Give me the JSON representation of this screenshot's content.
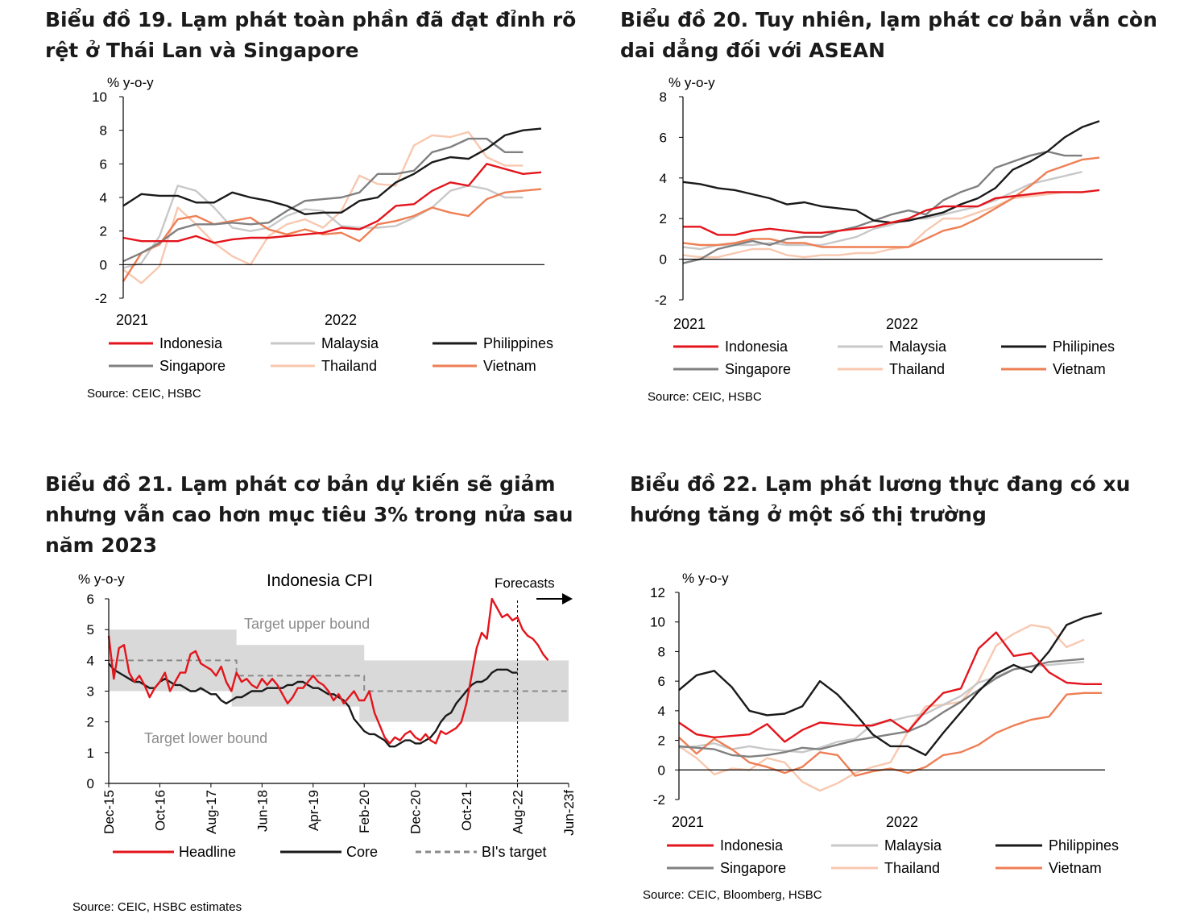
{
  "colors": {
    "indonesia": "#e3151c",
    "malaysia": "#c8c8c8",
    "philippines": "#1a1a1a",
    "singapore": "#808080",
    "thailand": "#f8c8b0",
    "vietnam": "#ee7f55",
    "band": "#d9d9d9",
    "axis": "#000000"
  },
  "chart_data": [
    {
      "type": "line",
      "title": "Biểu đồ 19. Lạm phát toàn phần đã đạt đỉnh rõ rệt ở Thái Lan và Singapore",
      "unit": "% y-o-y",
      "ylim": [
        -2,
        10
      ],
      "yticks": [
        "10",
        "8",
        "6",
        "4",
        "2",
        "0",
        "-2"
      ],
      "xlabels": [
        "2021",
        "2022"
      ],
      "source": "Source: CEIC, HSBC",
      "legend": [
        "Indonesia",
        "Malaysia",
        "Philippines",
        "Singapore",
        "Thailand",
        "Vietnam"
      ],
      "series": [
        {
          "name": "Indonesia",
          "key": "indonesia",
          "values": [
            1.6,
            1.4,
            1.4,
            1.4,
            1.7,
            1.3,
            1.5,
            1.6,
            1.6,
            1.7,
            1.8,
            1.9,
            2.2,
            2.1,
            2.6,
            3.5,
            3.6,
            4.4,
            4.9,
            4.7,
            6.0,
            5.7,
            5.4,
            5.5
          ]
        },
        {
          "name": "Malaysia",
          "key": "malaysia",
          "values": [
            -0.2,
            0.1,
            1.7,
            4.7,
            4.4,
            3.4,
            2.2,
            2.0,
            2.2,
            2.9,
            3.3,
            3.2,
            2.3,
            2.2,
            2.2,
            2.3,
            2.8,
            3.4,
            4.4,
            4.7,
            4.5,
            4.0,
            4.0,
            null
          ]
        },
        {
          "name": "Philippines",
          "key": "philippines",
          "values": [
            3.5,
            4.2,
            4.1,
            4.1,
            3.7,
            3.7,
            4.3,
            4.0,
            3.8,
            3.5,
            3.0,
            3.1,
            3.1,
            3.8,
            4.0,
            4.9,
            5.4,
            6.1,
            6.4,
            6.3,
            6.9,
            7.7,
            8.0,
            8.1
          ]
        },
        {
          "name": "Singapore",
          "key": "singapore",
          "values": [
            0.2,
            0.7,
            1.3,
            2.1,
            2.4,
            2.4,
            2.5,
            2.4,
            2.5,
            3.2,
            3.8,
            3.9,
            4.0,
            4.3,
            5.4,
            5.4,
            5.6,
            6.7,
            7.0,
            7.5,
            7.5,
            6.7,
            6.7,
            null
          ]
        },
        {
          "name": "Thailand",
          "key": "thailand",
          "values": [
            -0.3,
            -1.1,
            -0.1,
            3.4,
            2.4,
            1.3,
            0.5,
            0.0,
            1.7,
            2.4,
            2.7,
            2.2,
            3.2,
            5.3,
            4.8,
            4.7,
            7.1,
            7.7,
            7.6,
            7.9,
            6.4,
            5.9,
            5.9,
            null
          ]
        },
        {
          "name": "Vietnam",
          "key": "vietnam",
          "values": [
            -1.0,
            0.7,
            1.2,
            2.7,
            2.9,
            2.4,
            2.6,
            2.8,
            2.1,
            1.8,
            2.1,
            1.8,
            1.9,
            1.4,
            2.4,
            2.6,
            2.9,
            3.4,
            3.1,
            2.9,
            3.9,
            4.3,
            4.4,
            4.5
          ]
        }
      ]
    },
    {
      "type": "line",
      "title": "Biểu đồ 20. Tuy nhiên, lạm phát cơ bản vẫn còn dai dẳng đối với ASEAN",
      "unit": "% y-o-y",
      "ylim": [
        -2,
        8
      ],
      "yticks": [
        "8",
        "6",
        "4",
        "2",
        "0",
        "-2"
      ],
      "xlabels": [
        "2021",
        "2022"
      ],
      "source": "Source: CEIC, HSBC",
      "legend": [
        "Indonesia",
        "Malaysia",
        "Philipines",
        "Singapore",
        "Thailand",
        "Vietnam"
      ],
      "series": [
        {
          "name": "Indonesia",
          "key": "indonesia",
          "values": [
            1.6,
            1.6,
            1.2,
            1.2,
            1.4,
            1.5,
            1.4,
            1.3,
            1.3,
            1.4,
            1.5,
            1.6,
            1.8,
            2.0,
            2.4,
            2.6,
            2.6,
            2.6,
            3.0,
            3.1,
            3.2,
            3.3,
            3.3,
            3.3,
            3.4
          ]
        },
        {
          "name": "Malaysia",
          "key": "malaysia",
          "values": [
            0.6,
            0.5,
            0.7,
            0.7,
            0.7,
            0.8,
            0.7,
            0.7,
            0.7,
            0.9,
            1.1,
            1.5,
            1.7,
            2.0,
            2.0,
            2.2,
            2.4,
            2.6,
            2.9,
            3.3,
            3.7,
            3.9,
            4.1,
            4.3,
            null
          ]
        },
        {
          "name": "Philipines",
          "key": "philippines",
          "values": [
            3.8,
            3.7,
            3.5,
            3.4,
            3.2,
            3.0,
            2.7,
            2.8,
            2.6,
            2.5,
            2.4,
            1.9,
            1.8,
            1.9,
            2.1,
            2.3,
            2.7,
            3.0,
            3.5,
            4.4,
            4.8,
            5.3,
            6.0,
            6.5,
            6.8
          ]
        },
        {
          "name": "Singapore",
          "key": "singapore",
          "values": [
            -0.2,
            0.0,
            0.5,
            0.7,
            0.9,
            0.7,
            1.0,
            1.1,
            1.1,
            1.4,
            1.6,
            1.9,
            2.2,
            2.4,
            2.2,
            2.9,
            3.3,
            3.6,
            4.5,
            4.8,
            5.1,
            5.3,
            5.1,
            5.1,
            null
          ]
        },
        {
          "name": "Thailand",
          "key": "thailand",
          "values": [
            0.2,
            0.1,
            0.1,
            0.3,
            0.5,
            0.5,
            0.2,
            0.1,
            0.2,
            0.2,
            0.3,
            0.3,
            0.5,
            0.6,
            1.4,
            2.0,
            2.0,
            2.3,
            2.6,
            3.0,
            3.1,
            3.2,
            3.3,
            3.3,
            null
          ]
        },
        {
          "name": "Vietnam",
          "key": "vietnam",
          "values": [
            0.8,
            0.7,
            0.7,
            0.8,
            1.0,
            1.0,
            0.8,
            0.8,
            0.6,
            0.6,
            0.6,
            0.6,
            0.6,
            0.6,
            1.0,
            1.4,
            1.6,
            2.0,
            2.5,
            3.0,
            3.6,
            4.3,
            4.6,
            4.9,
            5.0
          ]
        }
      ]
    },
    {
      "type": "line",
      "title": "Biểu đồ 21. Lạm phát cơ bản dự kiến sẽ giảm nhưng vẫn cao hơn mục tiêu 3% trong nửa sau năm 2023",
      "chart_title": "Indonesia CPI",
      "unit": "% y-o-y",
      "ylim": [
        0,
        6
      ],
      "yticks": [
        "6",
        "5",
        "4",
        "3",
        "2",
        "1",
        "0"
      ],
      "xlabels": [
        "Dec-15",
        "Oct-16",
        "Aug-17",
        "Jun-18",
        "Apr-19",
        "Feb-20",
        "Dec-20",
        "Oct-21",
        "Aug-22",
        "Jun-23f"
      ],
      "xrange_months": [
        0,
        90
      ],
      "forecast_start_month": 80,
      "forecast_label": "Forecasts",
      "annotations": {
        "upper": "Target upper bound",
        "lower": "Target lower bound"
      },
      "source": "Source: CEIC, HSBC estimates",
      "legend": [
        "Headline",
        "Core",
        "BI's target"
      ],
      "target": [
        {
          "from": 0,
          "to": 25,
          "lower": 3.0,
          "upper": 5.0,
          "mid": 4.0
        },
        {
          "from": 25,
          "to": 50,
          "lower": 2.5,
          "upper": 4.5,
          "mid": 3.5
        },
        {
          "from": 50,
          "to": 90,
          "lower": 2.0,
          "upper": 4.0,
          "mid": 3.0
        }
      ],
      "series": [
        {
          "name": "Headline",
          "key": "indonesia",
          "start_month": 0,
          "values": [
            4.8,
            3.4,
            4.4,
            4.5,
            3.6,
            3.3,
            3.5,
            3.2,
            2.8,
            3.1,
            3.3,
            3.6,
            3.0,
            3.3,
            3.6,
            3.6,
            4.2,
            4.3,
            3.9,
            3.8,
            3.7,
            3.5,
            3.8,
            3.3,
            3.0,
            3.6,
            3.3,
            3.4,
            3.2,
            3.1,
            3.4,
            3.2,
            3.4,
            3.2,
            2.9,
            2.6,
            2.8,
            3.1,
            3.1,
            3.3,
            3.5,
            3.3,
            3.2,
            3.0,
            2.7,
            2.9,
            2.6,
            2.8,
            3.0,
            2.7,
            2.7,
            3.0,
            2.3,
            1.9,
            1.5,
            1.3,
            1.5,
            1.4,
            1.6,
            1.7,
            1.5,
            1.4,
            1.6,
            1.4,
            1.3,
            1.7,
            1.6,
            1.7,
            1.8,
            2.0,
            2.6,
            3.5,
            4.4,
            4.9,
            4.7,
            6.0,
            5.7,
            5.4,
            5.5,
            5.3,
            5.4,
            5.0,
            4.8,
            4.7,
            4.5,
            4.2,
            4.0
          ]
        },
        {
          "name": "Core",
          "key": "philippines",
          "start_month": 0,
          "values": [
            3.9,
            3.7,
            3.6,
            3.5,
            3.4,
            3.3,
            3.3,
            3.2,
            3.1,
            3.1,
            3.3,
            3.4,
            3.3,
            3.2,
            3.2,
            3.1,
            3.0,
            3.0,
            3.1,
            3.0,
            2.9,
            2.9,
            2.7,
            2.6,
            2.7,
            2.8,
            2.8,
            2.9,
            3.0,
            3.0,
            3.0,
            3.1,
            3.1,
            3.1,
            3.1,
            3.2,
            3.2,
            3.3,
            3.3,
            3.2,
            3.1,
            3.1,
            3.0,
            2.9,
            2.9,
            2.8,
            2.7,
            2.5,
            2.1,
            1.9,
            1.7,
            1.6,
            1.6,
            1.5,
            1.4,
            1.2,
            1.2,
            1.3,
            1.4,
            1.4,
            1.3,
            1.3,
            1.4,
            1.5,
            1.7,
            2.0,
            2.2,
            2.3,
            2.6,
            2.8,
            3.0,
            3.2,
            3.3,
            3.3,
            3.4,
            3.6,
            3.7,
            3.7,
            3.7,
            3.6,
            3.6
          ]
        }
      ]
    },
    {
      "type": "line",
      "title": "Biểu đồ 22. Lạm phát lương thực đang có xu hướng tăng ở một số thị trường",
      "unit": "% y-o-y",
      "ylim": [
        -2,
        12
      ],
      "yticks": [
        "12",
        "10",
        "8",
        "6",
        "4",
        "2",
        "0",
        "-2"
      ],
      "xlabels": [
        "2021",
        "2022"
      ],
      "source": "Source: CEIC, Bloomberg, HSBC",
      "legend": [
        "Indonesia",
        "Malaysia",
        "Philippines",
        "Singapore",
        "Thailand",
        "Vietnam"
      ],
      "series": [
        {
          "name": "Indonesia",
          "key": "indonesia",
          "values": [
            3.2,
            2.4,
            2.2,
            2.3,
            2.4,
            3.1,
            1.9,
            2.7,
            3.2,
            3.1,
            3.0,
            3.0,
            3.4,
            2.6,
            4.0,
            5.2,
            5.5,
            8.2,
            9.3,
            7.7,
            7.9,
            6.6,
            5.9,
            5.8,
            5.8
          ]
        },
        {
          "name": "Malaysia",
          "key": "malaysia",
          "values": [
            1.5,
            1.6,
            1.8,
            1.4,
            1.6,
            1.4,
            1.3,
            1.2,
            1.5,
            1.9,
            2.1,
            3.1,
            3.3,
            3.6,
            3.8,
            4.4,
            5.0,
            5.9,
            6.3,
            6.8,
            7.0,
            7.1,
            7.2,
            7.3,
            null
          ]
        },
        {
          "name": "Philippines",
          "key": "philippines",
          "values": [
            5.4,
            6.4,
            6.7,
            5.6,
            4.0,
            3.7,
            3.8,
            4.3,
            6.0,
            5.1,
            3.8,
            2.4,
            1.6,
            1.6,
            1.0,
            2.5,
            3.9,
            5.3,
            6.5,
            7.1,
            6.6,
            8.0,
            9.8,
            10.3,
            10.6
          ]
        },
        {
          "name": "Singapore",
          "key": "singapore",
          "values": [
            1.6,
            1.5,
            1.4,
            1.0,
            0.9,
            1.0,
            1.2,
            1.5,
            1.4,
            1.7,
            2.0,
            2.2,
            2.4,
            2.6,
            3.1,
            3.9,
            4.6,
            5.4,
            6.2,
            6.8,
            7.0,
            7.3,
            7.4,
            7.5,
            null
          ]
        },
        {
          "name": "Thailand",
          "key": "thailand",
          "values": [
            1.6,
            0.8,
            -0.3,
            0.1,
            0.0,
            0.8,
            0.5,
            -0.8,
            -1.4,
            -0.9,
            -0.2,
            0.2,
            0.5,
            2.6,
            4.3,
            4.4,
            4.6,
            6.0,
            8.4,
            9.2,
            9.8,
            9.6,
            8.3,
            8.8,
            null
          ]
        },
        {
          "name": "Vietnam",
          "key": "vietnam",
          "values": [
            2.2,
            1.1,
            2.1,
            1.4,
            0.5,
            0.2,
            -0.2,
            0.2,
            1.2,
            1.0,
            -0.4,
            -0.1,
            0.1,
            -0.2,
            0.2,
            1.0,
            1.2,
            1.7,
            2.5,
            3.0,
            3.4,
            3.6,
            5.1,
            5.2,
            5.2
          ]
        }
      ]
    }
  ]
}
